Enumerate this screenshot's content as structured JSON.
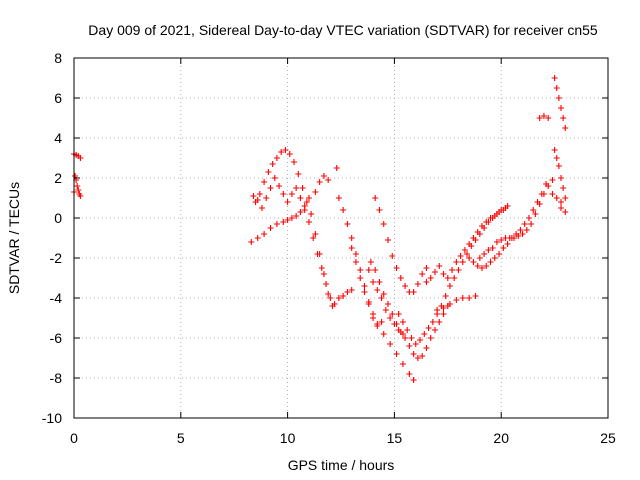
{
  "chart_data": {
    "type": "scatter",
    "title": "Day 009 of 2021, Sidereal Day-to-day VTEC variation (SDTVAR) for receiver cn55",
    "xlabel": "GPS time / hours",
    "ylabel": "SDTVAR / TECUs",
    "xlim": [
      0,
      25
    ],
    "ylim": [
      -10,
      8
    ],
    "xticks": [
      "0",
      "5",
      "10",
      "15",
      "20",
      "25"
    ],
    "yticks": [
      "-10",
      "-8",
      "-6",
      "-4",
      "-2",
      "0",
      "2",
      "4",
      "6",
      "8"
    ],
    "grid": true,
    "legend": "none",
    "marker": "plus",
    "color": "#ff0000",
    "series": [
      {
        "points": [
          [
            0.0,
            3.2
          ],
          [
            0.1,
            3.15
          ],
          [
            0.2,
            3.1
          ],
          [
            0.3,
            3.0
          ],
          [
            0.05,
            2.1
          ],
          [
            0.1,
            1.9
          ],
          [
            0.15,
            1.6
          ],
          [
            0.2,
            1.4
          ],
          [
            0.25,
            1.2
          ],
          [
            0.3,
            1.1
          ],
          [
            0.0,
            1.3
          ],
          [
            8.3,
            -1.2
          ],
          [
            8.6,
            -1.0
          ],
          [
            8.9,
            -0.8
          ],
          [
            9.2,
            -0.5
          ],
          [
            9.5,
            -0.3
          ],
          [
            9.8,
            -0.2
          ],
          [
            10.0,
            -0.1
          ],
          [
            10.2,
            0.0
          ],
          [
            10.4,
            0.1
          ],
          [
            10.6,
            0.3
          ],
          [
            10.8,
            0.6
          ],
          [
            11.0,
            1.0
          ],
          [
            11.3,
            1.3
          ],
          [
            11.5,
            1.8
          ],
          [
            11.7,
            2.1
          ],
          [
            11.9,
            1.9
          ],
          [
            8.5,
            0.8
          ],
          [
            8.7,
            1.2
          ],
          [
            8.9,
            1.8
          ],
          [
            9.1,
            2.3
          ],
          [
            9.3,
            2.7
          ],
          [
            9.5,
            3.0
          ],
          [
            9.7,
            3.3
          ],
          [
            9.9,
            3.4
          ],
          [
            10.1,
            3.2
          ],
          [
            10.3,
            2.8
          ],
          [
            10.5,
            2.2
          ],
          [
            10.7,
            1.5
          ],
          [
            10.9,
            0.8
          ],
          [
            11.1,
            0.2
          ],
          [
            11.3,
            -0.8
          ],
          [
            11.5,
            -1.8
          ],
          [
            11.7,
            -2.8
          ],
          [
            11.9,
            -3.8
          ],
          [
            12.1,
            -4.4
          ],
          [
            8.4,
            1.1
          ],
          [
            8.6,
            0.9
          ],
          [
            8.8,
            0.5
          ],
          [
            9.0,
            1.0
          ],
          [
            9.2,
            1.5
          ],
          [
            9.4,
            2.0
          ],
          [
            9.6,
            1.6
          ],
          [
            9.8,
            1.2
          ],
          [
            10.0,
            0.8
          ],
          [
            10.2,
            1.2
          ],
          [
            10.4,
            1.5
          ],
          [
            10.6,
            1.0
          ],
          [
            10.8,
            0.4
          ],
          [
            11.0,
            -0.2
          ],
          [
            11.2,
            -1.0
          ],
          [
            11.4,
            -1.8
          ],
          [
            11.6,
            -2.5
          ],
          [
            11.8,
            -3.3
          ],
          [
            12.0,
            -4.0
          ],
          [
            12.2,
            -4.3
          ],
          [
            12.3,
            2.5
          ],
          [
            12.4,
            1.0
          ],
          [
            12.6,
            0.4
          ],
          [
            12.8,
            -0.3
          ],
          [
            13.0,
            -1.0
          ],
          [
            13.2,
            -1.8
          ],
          [
            13.4,
            -2.6
          ],
          [
            13.6,
            -3.4
          ],
          [
            13.8,
            -4.2
          ],
          [
            14.0,
            -5.0
          ],
          [
            14.2,
            -5.4
          ],
          [
            14.4,
            -5.2
          ],
          [
            12.4,
            -4.0
          ],
          [
            12.6,
            -3.9
          ],
          [
            12.8,
            -3.7
          ],
          [
            13.0,
            -3.6
          ],
          [
            13.0,
            -1.5
          ],
          [
            13.2,
            -2.2
          ],
          [
            13.4,
            -3.0
          ],
          [
            13.6,
            -3.7
          ],
          [
            13.8,
            -4.3
          ],
          [
            14.0,
            -4.8
          ],
          [
            14.2,
            -5.3
          ],
          [
            14.5,
            -5.8
          ],
          [
            14.8,
            -6.3
          ],
          [
            15.1,
            -6.8
          ],
          [
            15.4,
            -7.3
          ],
          [
            15.7,
            -7.8
          ],
          [
            15.9,
            -8.1
          ],
          [
            13.8,
            -2.6
          ],
          [
            14.0,
            -3.2
          ],
          [
            14.2,
            -3.6
          ],
          [
            14.4,
            -4.0
          ],
          [
            14.6,
            -4.6
          ],
          [
            14.8,
            -5.0
          ],
          [
            15.0,
            -5.3
          ],
          [
            15.2,
            -5.6
          ],
          [
            15.4,
            -5.8
          ],
          [
            14.1,
            1.0
          ],
          [
            14.3,
            0.4
          ],
          [
            14.5,
            -0.3
          ],
          [
            14.7,
            -1.1
          ],
          [
            14.9,
            -1.9
          ],
          [
            15.1,
            -2.5
          ],
          [
            15.3,
            -3.0
          ],
          [
            15.5,
            -3.4
          ],
          [
            15.7,
            -3.7
          ],
          [
            15.9,
            -3.7
          ],
          [
            16.1,
            -3.3
          ],
          [
            16.3,
            -2.8
          ],
          [
            16.5,
            -2.5
          ],
          [
            13.9,
            -2.2
          ],
          [
            14.1,
            -2.6
          ],
          [
            14.3,
            -3.2
          ],
          [
            14.5,
            -3.8
          ],
          [
            14.7,
            -4.3
          ],
          [
            14.9,
            -4.8
          ],
          [
            15.1,
            -5.3
          ],
          [
            15.3,
            -5.7
          ],
          [
            15.5,
            -6.0
          ],
          [
            15.7,
            -6.4
          ],
          [
            15.9,
            -6.8
          ],
          [
            16.1,
            -7.0
          ],
          [
            16.3,
            -6.9
          ],
          [
            16.5,
            -6.5
          ],
          [
            16.7,
            -6.0
          ],
          [
            16.9,
            -5.6
          ],
          [
            17.1,
            -5.2
          ],
          [
            17.3,
            -4.8
          ],
          [
            17.5,
            -4.4
          ],
          [
            15.2,
            -4.8
          ],
          [
            15.4,
            -5.2
          ],
          [
            15.6,
            -5.6
          ],
          [
            15.8,
            -6.0
          ],
          [
            16.0,
            -6.3
          ],
          [
            16.2,
            -6.1
          ],
          [
            16.4,
            -5.8
          ],
          [
            16.6,
            -5.5
          ],
          [
            16.8,
            -5.2
          ],
          [
            17.0,
            -4.8
          ],
          [
            17.2,
            -4.4
          ],
          [
            17.4,
            -3.9
          ],
          [
            17.6,
            -3.4
          ],
          [
            17.8,
            -3.0
          ],
          [
            18.0,
            -2.6
          ],
          [
            18.2,
            -2.2
          ],
          [
            18.4,
            -1.8
          ],
          [
            18.6,
            -1.4
          ],
          [
            18.8,
            -1.1
          ],
          [
            19.0,
            -0.8
          ],
          [
            19.2,
            -0.5
          ],
          [
            19.4,
            -0.2
          ],
          [
            19.6,
            0.0
          ],
          [
            19.8,
            0.2
          ],
          [
            20.0,
            0.4
          ],
          [
            20.2,
            0.5
          ],
          [
            16.5,
            -3.2
          ],
          [
            16.7,
            -3.0
          ],
          [
            16.9,
            -2.7
          ],
          [
            17.1,
            -2.4
          ],
          [
            17.3,
            -2.8
          ],
          [
            17.5,
            -3.0
          ],
          [
            17.7,
            -2.6
          ],
          [
            17.9,
            -2.2
          ],
          [
            18.1,
            -1.9
          ],
          [
            18.3,
            -1.6
          ],
          [
            18.5,
            -1.3
          ],
          [
            18.7,
            -1.0
          ],
          [
            18.9,
            -0.7
          ],
          [
            19.1,
            -0.4
          ],
          [
            19.3,
            -0.2
          ],
          [
            19.5,
            0.0
          ],
          [
            19.7,
            0.1
          ],
          [
            19.9,
            0.3
          ],
          [
            20.1,
            0.4
          ],
          [
            20.3,
            0.6
          ],
          [
            17.0,
            -4.6
          ],
          [
            17.3,
            -4.5
          ],
          [
            17.6,
            -4.3
          ],
          [
            17.9,
            -4.1
          ],
          [
            18.2,
            -4.0
          ],
          [
            18.5,
            -4.0
          ],
          [
            18.8,
            -3.9
          ],
          [
            18.5,
            -2.0
          ],
          [
            18.7,
            -2.2
          ],
          [
            18.9,
            -2.4
          ],
          [
            19.1,
            -2.5
          ],
          [
            19.3,
            -2.4
          ],
          [
            19.5,
            -2.2
          ],
          [
            19.7,
            -2.0
          ],
          [
            19.9,
            -1.8
          ],
          [
            20.1,
            -1.5
          ],
          [
            20.3,
            -1.3
          ],
          [
            20.5,
            -1.0
          ],
          [
            20.7,
            -0.8
          ],
          [
            20.9,
            -0.6
          ],
          [
            21.1,
            -0.3
          ],
          [
            21.3,
            0.0
          ],
          [
            21.5,
            0.4
          ],
          [
            21.7,
            0.8
          ],
          [
            21.9,
            1.2
          ],
          [
            22.1,
            1.7
          ],
          [
            19.0,
            -2.0
          ],
          [
            19.2,
            -1.8
          ],
          [
            19.4,
            -1.6
          ],
          [
            19.6,
            -1.5
          ],
          [
            19.8,
            -1.2
          ],
          [
            20.0,
            -1.1
          ],
          [
            20.2,
            -1.0
          ],
          [
            20.4,
            -1.0
          ],
          [
            20.6,
            -1.0
          ],
          [
            20.8,
            -0.9
          ],
          [
            21.0,
            -0.8
          ],
          [
            21.2,
            -0.6
          ],
          [
            21.4,
            -0.3
          ],
          [
            21.6,
            0.2
          ],
          [
            21.8,
            0.7
          ],
          [
            22.0,
            1.2
          ],
          [
            22.2,
            1.6
          ],
          [
            22.4,
            1.9
          ],
          [
            21.8,
            5.0
          ],
          [
            22.0,
            5.1
          ],
          [
            22.2,
            5.0
          ],
          [
            22.5,
            7.0
          ],
          [
            22.6,
            6.5
          ],
          [
            22.7,
            6.0
          ],
          [
            22.8,
            5.5
          ],
          [
            22.9,
            5.0
          ],
          [
            23.0,
            4.5
          ],
          [
            22.5,
            3.4
          ],
          [
            22.6,
            3.0
          ],
          [
            22.7,
            2.6
          ],
          [
            22.8,
            2.0
          ],
          [
            22.9,
            1.5
          ],
          [
            23.0,
            1.0
          ],
          [
            22.8,
            0.5
          ],
          [
            23.0,
            0.3
          ],
          [
            22.4,
            1.2
          ],
          [
            22.6,
            1.0
          ],
          [
            22.8,
            0.8
          ]
        ]
      }
    ]
  }
}
